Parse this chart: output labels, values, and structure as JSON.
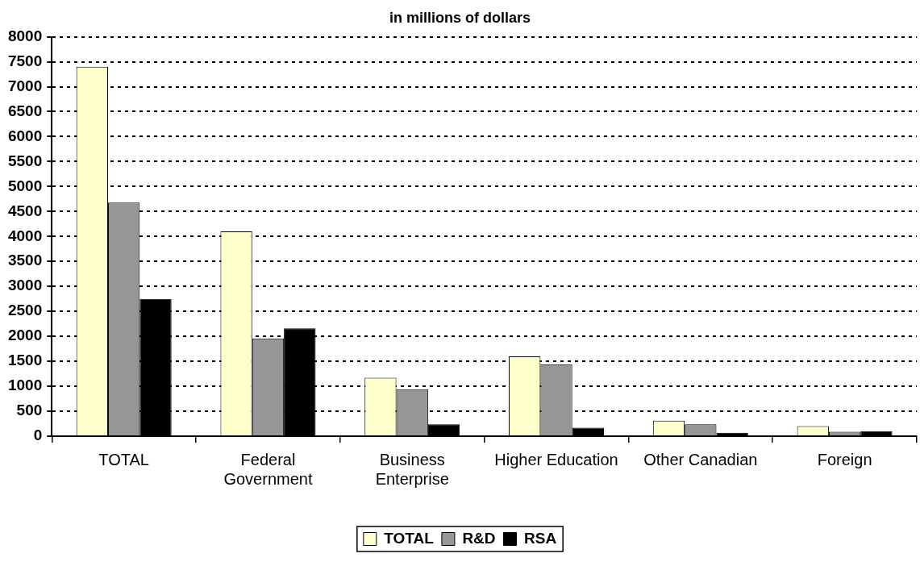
{
  "chart_data": {
    "type": "bar",
    "title": "in millions of dollars",
    "categories": [
      "TOTAL",
      "Federal Government",
      "Business Enterprise",
      "Higher Education",
      "Other Canadian",
      "Foreign"
    ],
    "series": [
      {
        "name": "TOTAL",
        "color": "#ffffcc",
        "values": [
          7400,
          4100,
          1170,
          1600,
          310,
          200
        ]
      },
      {
        "name": "R&D",
        "color": "#969696",
        "values": [
          4680,
          1960,
          940,
          1440,
          240,
          90
        ]
      },
      {
        "name": "RSA",
        "color": "#000000",
        "values": [
          2750,
          2160,
          240,
          170,
          70,
          100
        ]
      }
    ],
    "ylim": [
      0,
      8000
    ],
    "yticks": [
      0,
      500,
      1000,
      1500,
      2000,
      2500,
      3000,
      3500,
      4000,
      4500,
      5000,
      5500,
      6000,
      6500,
      7000,
      7500,
      8000
    ],
    "grid": "y",
    "legend": "bottom"
  }
}
